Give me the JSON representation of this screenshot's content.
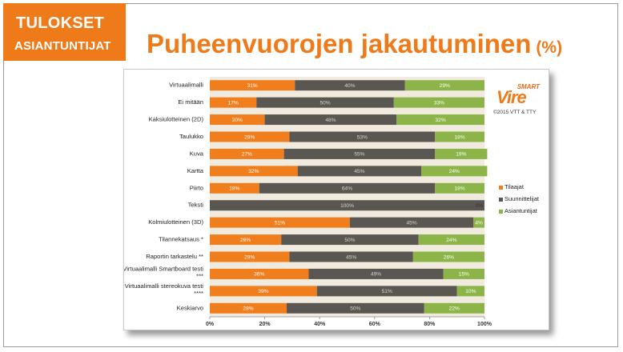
{
  "header": {
    "badge_line1": "TULOKSET",
    "badge_line2": "ASIANTUNTIJAT",
    "title": "Puheenvuorojen jakautuminen",
    "title_unit": "(%)"
  },
  "logo": {
    "smart": "SMART",
    "vire": "Vire",
    "copyright": "©2015 VTT & TTY"
  },
  "colors": {
    "accent": "#ef7a1a",
    "tilaajat": "#f07e1c",
    "suunnittelijat": "#5a5651",
    "asiantuntijat": "#8cb448",
    "plot_background": "#f1ebdf"
  },
  "chart_data": {
    "type": "bar",
    "orientation": "horizontal",
    "stacked": true,
    "percent_stacked": true,
    "categories": [
      "Virtuaalimalli",
      "Ei mitään",
      "Kaksiulotteinen (2D)",
      "Taulukko",
      "Kuva",
      "Kartta",
      "Piirto",
      "Teksti",
      "Kolmiulotteinen (3D)",
      "Tilannekatsaus *",
      "Raportin tarkastelu **",
      "Virtuaalimalli Smartboard testi ***",
      "Virtuaalimalli stereokuva testi ****",
      "Keskiarvo"
    ],
    "series": [
      {
        "name": "Tilaajat",
        "values": [
          31,
          17,
          20,
          29,
          27,
          32,
          18,
          0,
          51,
          26,
          29,
          36,
          39,
          28
        ]
      },
      {
        "name": "Suunnittelijat",
        "values": [
          40,
          50,
          48,
          53,
          55,
          45,
          64,
          100,
          45,
          50,
          45,
          49,
          51,
          50
        ]
      },
      {
        "name": "Asiantuntijat",
        "values": [
          29,
          33,
          32,
          18,
          19,
          24,
          18,
          0,
          4,
          24,
          26,
          15,
          10,
          22
        ]
      }
    ],
    "data_labels": [
      [
        "31%",
        "40%",
        "29%"
      ],
      [
        "17%",
        "50%",
        "33%"
      ],
      [
        "20%",
        "48%",
        "32%"
      ],
      [
        "29%",
        "53%",
        "18%"
      ],
      [
        "27%",
        "55%",
        "19%"
      ],
      [
        "32%",
        "45%",
        "24%"
      ],
      [
        "18%",
        "64%",
        "18%"
      ],
      [
        "0%",
        "100%",
        "0%"
      ],
      [
        "51%",
        "45%",
        "4%"
      ],
      [
        "26%",
        "50%",
        "24%"
      ],
      [
        "29%",
        "45%",
        "26%"
      ],
      [
        "36%",
        "49%",
        "15%"
      ],
      [
        "39%",
        "51%",
        "10%"
      ],
      [
        "28%",
        "50%",
        "22%"
      ]
    ],
    "xlim": [
      0,
      100
    ],
    "x_ticks": [
      "0%",
      "20%",
      "40%",
      "60%",
      "80%",
      "100%"
    ],
    "legend_position": "right",
    "grid": false
  }
}
